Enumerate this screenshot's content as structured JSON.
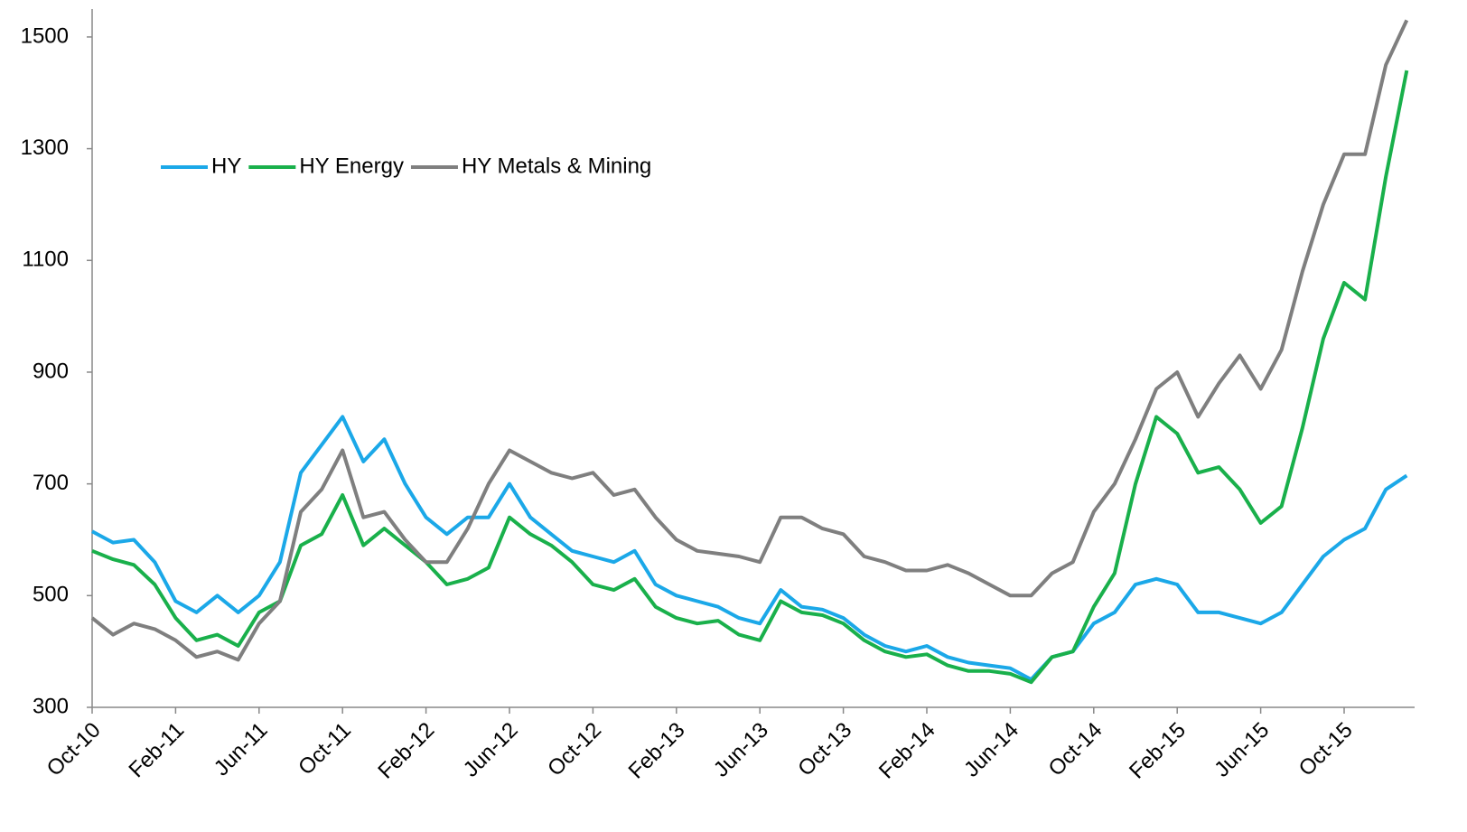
{
  "chart_data": {
    "type": "line",
    "x": [
      "Oct-10",
      null,
      null,
      null,
      "Feb-11",
      null,
      null,
      null,
      "Jun-11",
      null,
      null,
      null,
      "Oct-11",
      null,
      null,
      null,
      "Feb-12",
      null,
      null,
      null,
      "Jun-12",
      null,
      null,
      null,
      "Oct-12",
      null,
      null,
      null,
      "Feb-13",
      null,
      null,
      null,
      "Jun-13",
      null,
      null,
      null,
      "Oct-13",
      null,
      null,
      null,
      "Feb-14",
      null,
      null,
      null,
      "Jun-14",
      null,
      null,
      null,
      "Oct-14",
      null,
      null,
      null,
      "Feb-15",
      null,
      null,
      null,
      "Jun-15",
      null,
      null,
      null,
      "Oct-15",
      null,
      null,
      null
    ],
    "series": [
      {
        "name": "HY",
        "color": "#1ba8e8",
        "values": [
          615,
          595,
          600,
          560,
          490,
          470,
          500,
          470,
          500,
          560,
          720,
          770,
          820,
          740,
          780,
          700,
          640,
          610,
          640,
          640,
          700,
          640,
          610,
          580,
          570,
          560,
          580,
          520,
          500,
          490,
          480,
          460,
          450,
          510,
          480,
          475,
          460,
          430,
          410,
          400,
          410,
          390,
          380,
          375,
          370,
          350,
          390,
          400,
          450,
          470,
          520,
          530,
          520,
          470,
          470,
          460,
          450,
          470,
          520,
          570,
          600,
          620,
          690,
          715
        ]
      },
      {
        "name": "HY Energy",
        "color": "#19b04b",
        "values": [
          580,
          565,
          555,
          520,
          460,
          420,
          430,
          410,
          470,
          490,
          590,
          610,
          680,
          590,
          620,
          590,
          560,
          520,
          530,
          550,
          640,
          610,
          590,
          560,
          520,
          510,
          530,
          480,
          460,
          450,
          455,
          430,
          420,
          490,
          470,
          465,
          450,
          420,
          400,
          390,
          395,
          375,
          365,
          365,
          360,
          345,
          390,
          400,
          480,
          540,
          700,
          820,
          790,
          720,
          730,
          690,
          630,
          660,
          800,
          960,
          1060,
          1030,
          1250,
          1440
        ]
      },
      {
        "name": "HY Metals & Mining",
        "color": "#7f7f7f",
        "values": [
          460,
          430,
          450,
          440,
          420,
          390,
          400,
          385,
          450,
          490,
          650,
          690,
          760,
          640,
          650,
          600,
          560,
          560,
          620,
          700,
          760,
          740,
          720,
          710,
          720,
          680,
          690,
          640,
          600,
          580,
          575,
          570,
          560,
          640,
          640,
          620,
          610,
          570,
          560,
          545,
          545,
          555,
          540,
          520,
          500,
          500,
          540,
          560,
          650,
          700,
          780,
          870,
          900,
          820,
          880,
          930,
          870,
          940,
          1080,
          1200,
          1290,
          1290,
          1450,
          1530
        ]
      }
    ],
    "ylim": [
      300,
      1550
    ],
    "yticks": [
      300,
      500,
      700,
      900,
      1100,
      1300,
      1500
    ],
    "legend": "upper left",
    "grid": false
  }
}
